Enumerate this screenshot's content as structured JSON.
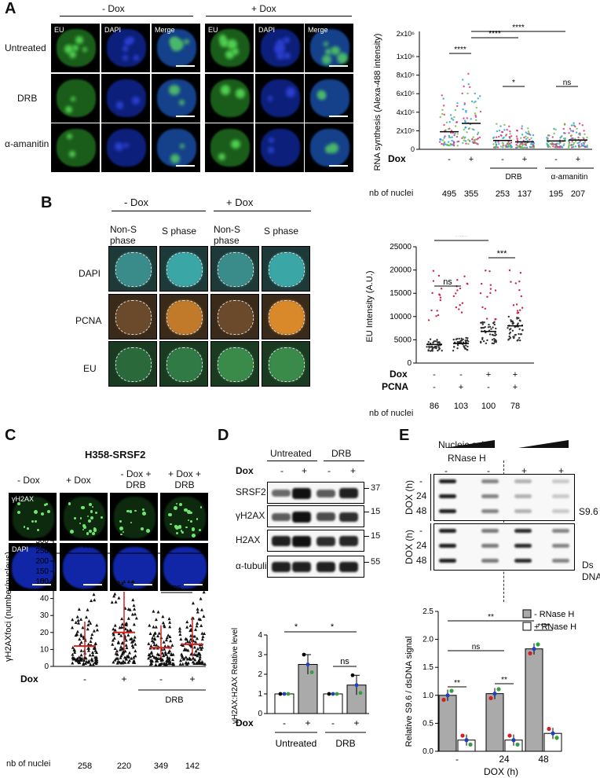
{
  "panels": {
    "A": {
      "letter": "A",
      "minus_dox": "- Dox",
      "plus_dox": "+ Dox",
      "channels": [
        "EU",
        "DAPI",
        "Merge"
      ],
      "rows": [
        "Untreated",
        "DRB",
        "α-amanitin"
      ]
    },
    "B": {
      "letter": "B",
      "minus_dox": "- Dox",
      "plus_dox": "+ Dox",
      "col_non_s": "Non-S phase",
      "col_s": "S phase",
      "rows": [
        "DAPI",
        "PCNA",
        "EU"
      ]
    },
    "C": {
      "letter": "C",
      "title": "H358-SRSF2",
      "cols": [
        "- Dox",
        "+ Dox",
        "- Dox + DRB",
        "+ Dox + DRB"
      ],
      "rows": [
        "γH2AX",
        "DAPI"
      ]
    },
    "D": {
      "letter": "D",
      "group_untreated": "Untreated",
      "group_drb": "DRB",
      "dox_label": "Dox",
      "dox_signs": [
        "-",
        "+",
        "-",
        "+"
      ],
      "blot_labels": [
        "SRSF2",
        "γH2AX",
        "H2AX",
        "α-tubulin"
      ],
      "mw": [
        "37",
        "15",
        "15",
        "55"
      ]
    },
    "E": {
      "letter": "E",
      "nucleic_acid": "Nucleic acid",
      "rnase_h": "RNase H",
      "rnase_signs": [
        "-",
        "-",
        "+",
        "+"
      ],
      "dox_axis": "DOX (h)",
      "dox_rows": [
        "-",
        "24",
        "48"
      ],
      "s96": "S9.6",
      "dsdna": "Ds DNA"
    }
  },
  "chart_data": [
    {
      "id": "A-chart",
      "type": "scatter",
      "ylabel": "RNA synthesis (Alexa-488 intensity)",
      "yticks": [
        "0",
        "2x10⁵",
        "4x10⁵",
        "6x10⁵",
        "8x10⁵",
        "1x10⁶",
        "2x10⁶"
      ],
      "ylim": [
        0,
        1000000
      ],
      "dox_label": "Dox",
      "dox_signs": [
        "-",
        "+",
        "-",
        "+",
        "-",
        "+"
      ],
      "groups": [
        "",
        "",
        "DRB",
        "DRB",
        "α-amanitin",
        "α-amanitin"
      ],
      "means": [
        190000,
        280000,
        95000,
        80000,
        90000,
        100000
      ],
      "nb_label": "nb of nuclei",
      "nb": [
        "495",
        "355",
        "253",
        "137",
        "195",
        "207"
      ],
      "significance": [
        "****",
        "****",
        "****",
        "*",
        "ns"
      ]
    },
    {
      "id": "B-chart",
      "type": "scatter",
      "ylabel": "EU Intensity (A.U.)",
      "yticks": [
        "0",
        "5000",
        "10000",
        "15000",
        "20000",
        "25000"
      ],
      "ylim": [
        0,
        25000
      ],
      "dox_label": "Dox",
      "dox_signs": [
        "-",
        "-",
        "+",
        "+"
      ],
      "pcna_label": "PCNA",
      "pcna_signs": [
        "-",
        "+",
        "-",
        "+"
      ],
      "means": [
        4000,
        4200,
        6800,
        8000
      ],
      "nb_label": "nb of nuclei",
      "nb": [
        "86",
        "103",
        "100",
        "78"
      ],
      "significance": [
        "****",
        "****",
        "ns",
        "***"
      ]
    },
    {
      "id": "C-chart",
      "type": "scatter",
      "ylabel": "γH2AXfoci (number/nucleus)",
      "yticks": [
        "0",
        "10",
        "20",
        "30",
        "40",
        "50",
        "100",
        "150",
        "200",
        "250",
        "300"
      ],
      "dox_label": "Dox",
      "dox_signs": [
        "-",
        "+",
        "-",
        "+"
      ],
      "group": "DRB",
      "means": [
        12,
        20,
        11,
        13
      ],
      "nb_label": "nb of nuclei",
      "nb": [
        "258",
        "220",
        "349",
        "142"
      ],
      "significance": [
        "****",
        "**",
        "ns"
      ]
    },
    {
      "id": "D-chart",
      "type": "bar",
      "ylabel": "γH2AX:H2AX Relative level",
      "yticks": [
        "0",
        "1",
        "2",
        "3",
        "4"
      ],
      "ylim": [
        0,
        4
      ],
      "dox_label": "Dox",
      "dox_signs": [
        "-",
        "+",
        "-",
        "+"
      ],
      "groups": [
        "Untreated",
        "DRB"
      ],
      "values": [
        1.0,
        2.5,
        1.0,
        1.45
      ],
      "significance": [
        "*",
        "*",
        "ns"
      ]
    },
    {
      "id": "E-chart",
      "type": "bar",
      "ylabel": "Relative S9.6 / dsDNA signal",
      "yticks": [
        "0.0",
        "0.5",
        "1.0",
        "1.5",
        "2.0",
        "2.5"
      ],
      "ylim": [
        0,
        2.5
      ],
      "xlabel": "DOX (h)",
      "categories": [
        "-",
        "24",
        "48"
      ],
      "series": [
        {
          "name": "- RNase H",
          "values": [
            1.0,
            1.03,
            1.83
          ]
        },
        {
          "name": "+ RNase H",
          "values": [
            0.2,
            0.2,
            0.32
          ]
        }
      ],
      "significance": [
        "**",
        "**",
        "****",
        "ns",
        "**"
      ]
    }
  ]
}
